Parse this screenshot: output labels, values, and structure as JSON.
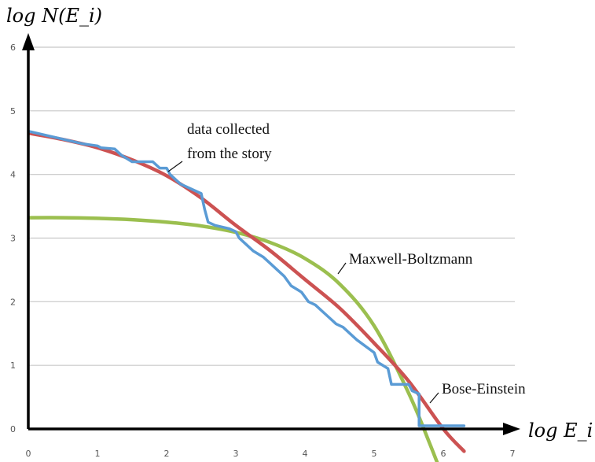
{
  "chart_data": {
    "type": "line",
    "xlabel": "log E_i",
    "ylabel": "log N(E_i)",
    "xlim": [
      0,
      7
    ],
    "ylim": [
      0,
      6
    ],
    "x_ticks": [
      "0",
      "1",
      "2",
      "3",
      "4",
      "5",
      "6",
      "7"
    ],
    "y_ticks": [
      "0",
      "1",
      "2",
      "3",
      "4",
      "5",
      "6"
    ],
    "grid": "horizontal",
    "series": [
      {
        "name": "data collected from the story",
        "color": "#5a9bd5",
        "x": [
          0.0,
          0.4,
          0.8,
          1.0,
          1.05,
          1.25,
          1.35,
          1.5,
          1.8,
          1.9,
          2.0,
          2.05,
          2.2,
          2.3,
          2.5,
          2.55,
          2.6,
          2.7,
          2.9,
          3.0,
          3.05,
          3.15,
          3.25,
          3.4,
          3.5,
          3.6,
          3.7,
          3.8,
          3.95,
          4.05,
          4.15,
          4.25,
          4.35,
          4.45,
          4.55,
          4.6,
          4.7,
          4.75,
          5.0,
          5.05,
          5.2,
          5.25,
          5.5,
          5.55,
          5.65,
          5.65,
          6.3
        ],
        "y": [
          4.68,
          4.58,
          4.48,
          4.45,
          4.42,
          4.4,
          4.3,
          4.2,
          4.2,
          4.1,
          4.1,
          4.0,
          3.85,
          3.8,
          3.7,
          3.45,
          3.25,
          3.2,
          3.15,
          3.1,
          3.0,
          2.9,
          2.8,
          2.7,
          2.6,
          2.5,
          2.4,
          2.25,
          2.15,
          2.0,
          1.95,
          1.85,
          1.75,
          1.65,
          1.6,
          1.55,
          1.45,
          1.4,
          1.2,
          1.05,
          0.95,
          0.7,
          0.7,
          0.6,
          0.55,
          0.05,
          0.05
        ]
      },
      {
        "name": "Bose-Einstein",
        "color": "#cc5252",
        "x": [
          0.0,
          0.5,
          1.0,
          1.5,
          2.0,
          2.5,
          3.0,
          3.5,
          4.0,
          4.5,
          5.0,
          5.5,
          6.0,
          6.3
        ],
        "y": [
          4.65,
          4.55,
          4.42,
          4.23,
          3.98,
          3.63,
          3.2,
          2.8,
          2.35,
          1.9,
          1.35,
          0.75,
          0.0,
          -0.35
        ]
      },
      {
        "name": "Maxwell-Boltzmann",
        "color": "#9bbf4f",
        "x": [
          0.0,
          0.5,
          1.0,
          1.5,
          2.0,
          2.5,
          3.0,
          3.5,
          4.0,
          4.5,
          5.0,
          5.5,
          5.8,
          5.98
        ],
        "y": [
          3.32,
          3.32,
          3.31,
          3.29,
          3.25,
          3.19,
          3.09,
          2.93,
          2.68,
          2.28,
          1.62,
          0.56,
          -0.22,
          -0.72
        ]
      }
    ],
    "annotations": [
      {
        "lines": [
          "data collected",
          "from the story"
        ],
        "target_series": 0
      },
      {
        "lines": [
          "Maxwell-Boltzmann"
        ],
        "target_series": 2
      },
      {
        "lines": [
          "Bose-Einstein"
        ],
        "target_series": 1
      }
    ]
  }
}
